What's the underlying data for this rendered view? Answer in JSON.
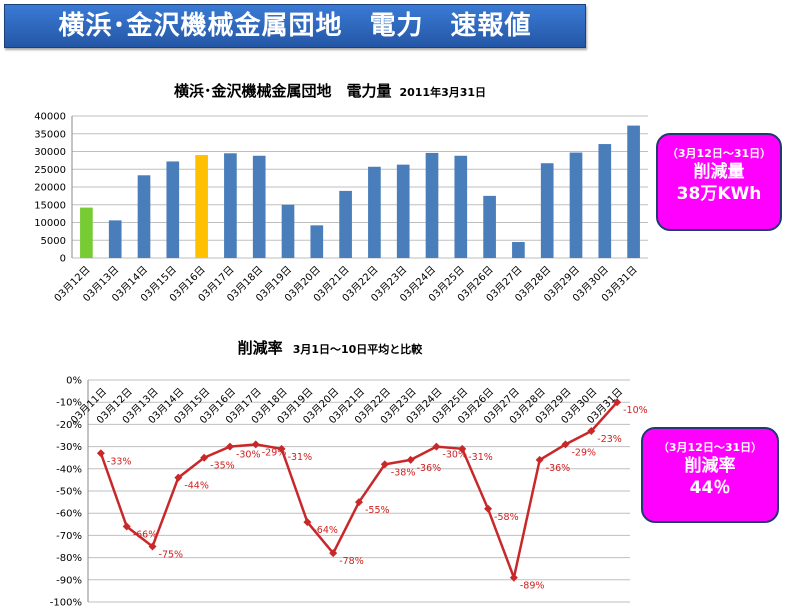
{
  "header": {
    "title": "横浜･金沢機械金属団地　電力　速報値"
  },
  "chart_data": [
    {
      "type": "bar",
      "title": "横浜･金沢機械金属団地　電力量",
      "subtitle": "2011年3月31日",
      "categories": [
        "03月12日",
        "03月13日",
        "03月14日",
        "03月15日",
        "03月16日",
        "03月17日",
        "03月18日",
        "03月19日",
        "03月20日",
        "03月21日",
        "03月22日",
        "03月23日",
        "03月24日",
        "03月25日",
        "03月26日",
        "03月27日",
        "03月28日",
        "03月29日",
        "03月30日",
        "03月31日"
      ],
      "values": [
        14200,
        10600,
        23300,
        27200,
        29000,
        29500,
        28800,
        15000,
        9200,
        18900,
        25700,
        26300,
        29600,
        28800,
        17500,
        4500,
        26700,
        29700,
        32100,
        37300
      ],
      "ylim": [
        0,
        40000
      ],
      "yticks": [
        0,
        5000,
        10000,
        15000,
        20000,
        25000,
        30000,
        35000,
        40000
      ],
      "grid": true,
      "bar_colors": {
        "default": "#4a7ebb",
        "first": "#77cc33",
        "highlight": "#ffc000"
      },
      "highlight_index": 4
    },
    {
      "type": "line",
      "title": "削減率",
      "subtitle": "3月1日～10日平均と比較",
      "categories": [
        "03月11日",
        "03月12日",
        "03月13日",
        "03月14日",
        "03月15日",
        "03月16日",
        "03月17日",
        "03月18日",
        "03月19日",
        "03月20日",
        "03月21日",
        "03月22日",
        "03月23日",
        "03月24日",
        "03月25日",
        "03月26日",
        "03月27日",
        "03月28日",
        "03月29日",
        "03月30日",
        "03月31日"
      ],
      "values": [
        -33,
        -66,
        -75,
        -44,
        -35,
        -30,
        -29,
        -31,
        -64,
        -78,
        -55,
        -38,
        -36,
        -30,
        -31,
        -58,
        -89,
        -36,
        -29,
        -23,
        -10
      ],
      "data_labels": [
        "-33%",
        "-66%",
        "-75%",
        "-44%",
        "-35%",
        "-30%",
        "-29%",
        "-31%",
        "-64%",
        "-78%",
        "-55%",
        "-38%",
        "-36%",
        "-30%",
        "-31%",
        "-58%",
        "-89%",
        "-36%",
        "-29%",
        "-23%",
        "-10%"
      ],
      "ylim": [
        -100,
        0
      ],
      "yticks": [
        0,
        -10,
        -20,
        -30,
        -40,
        -50,
        -60,
        -70,
        -80,
        -90,
        -100
      ],
      "ytick_labels": [
        "0%",
        "-10%",
        "-20%",
        "-30%",
        "-40%",
        "-50%",
        "-60%",
        "-70%",
        "-80%",
        "-90%",
        "-100%"
      ],
      "grid": true,
      "line_color": "#c8282a"
    }
  ],
  "callouts": [
    {
      "line1": "（3月12日～31日）",
      "line2": "削減量",
      "line3": "38万KWh"
    },
    {
      "line1": "（3月12日～31日）",
      "line2": "削減率",
      "line3": "44％"
    }
  ]
}
